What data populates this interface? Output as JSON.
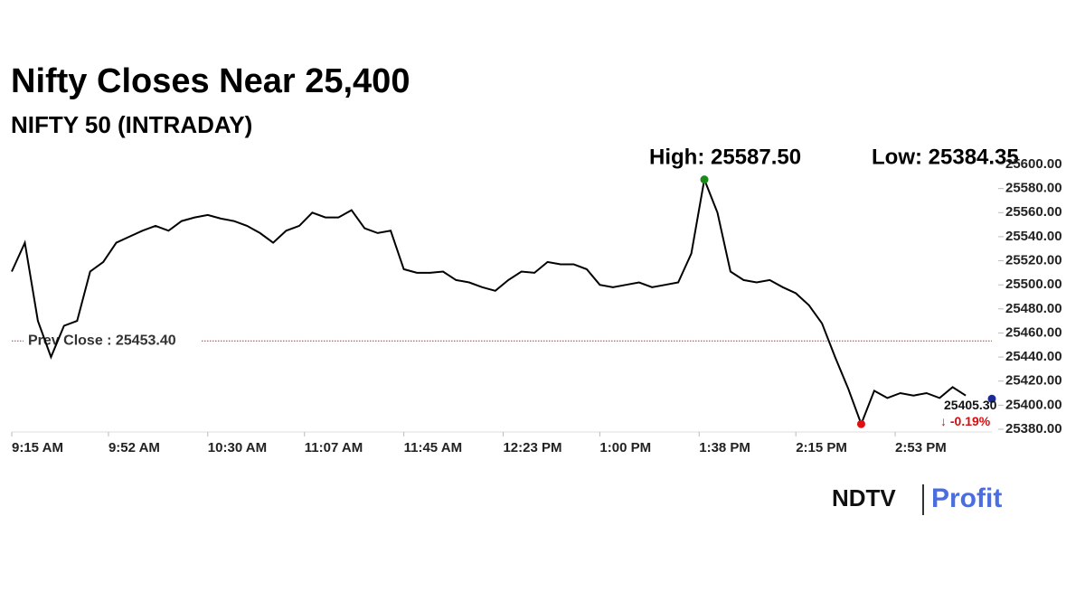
{
  "chart_data": {
    "type": "line",
    "title": "Nifty Closes Near 25,400",
    "subtitle": "NIFTY 50 (INTRADAY)",
    "x": [
      "9:15 AM",
      "9:20 AM",
      "9:25 AM",
      "9:30 AM",
      "9:35 AM",
      "9:40 AM",
      "9:45 AM",
      "9:50 AM",
      "9:55 AM",
      "10:00 AM",
      "10:05 AM",
      "10:10 AM",
      "10:15 AM",
      "10:20 AM",
      "10:25 AM",
      "10:30 AM",
      "10:35 AM",
      "10:40 AM",
      "10:45 AM",
      "10:50 AM",
      "10:55 AM",
      "11:00 AM",
      "11:05 AM",
      "11:10 AM",
      "11:15 AM",
      "11:20 AM",
      "11:25 AM",
      "11:30 AM",
      "11:35 AM",
      "11:40 AM",
      "11:45 AM",
      "11:50 AM",
      "11:55 AM",
      "12:00 PM",
      "12:05 PM",
      "12:10 PM",
      "12:15 PM",
      "12:20 PM",
      "12:25 PM",
      "12:30 PM",
      "12:35 PM",
      "12:40 PM",
      "12:45 PM",
      "12:50 PM",
      "12:55 PM",
      "1:00 PM",
      "1:05 PM",
      "1:10 PM",
      "1:15 PM",
      "1:20 PM",
      "1:25 PM",
      "1:30 PM",
      "1:35 PM",
      "1:40 PM",
      "1:45 PM",
      "1:50 PM",
      "1:55 PM",
      "2:00 PM",
      "2:05 PM",
      "2:10 PM",
      "2:15 PM",
      "2:20 PM",
      "2:25 PM",
      "2:30 PM",
      "2:35 PM",
      "2:40 PM",
      "2:45 PM",
      "2:50 PM",
      "2:55 PM",
      "3:00 PM",
      "3:05 PM",
      "3:10 PM",
      "3:15 PM",
      "3:20 PM"
    ],
    "series": [
      {
        "color": "#000000",
        "values": [
          25511,
          25535,
          25470,
          25440,
          25466,
          25470,
          25511,
          25519,
          25535,
          25540,
          25545,
          25549,
          25545,
          25553,
          25556,
          25558,
          25555,
          25553,
          25549,
          25543,
          25535,
          25545,
          25549,
          25560,
          25556,
          25556,
          25562,
          25547,
          25543,
          25545,
          25513,
          25510,
          25510,
          25511,
          25504,
          25502,
          25498,
          25495,
          25504,
          25511,
          25510,
          25519,
          25517,
          25517,
          25513,
          25500,
          25498,
          25500,
          25502,
          25498,
          25500,
          25502,
          25526,
          25587.5,
          25560,
          25511,
          25504,
          25502,
          25504,
          25498,
          25493,
          25483,
          25468,
          25440,
          25414,
          25384.35,
          25412,
          25406,
          25410,
          25408,
          25410,
          25406,
          25415,
          25408
        ]
      }
    ],
    "xlim": [
      "9:15 AM",
      "3:30 PM"
    ],
    "xticks": [
      "9:15 AM",
      "9:52 AM",
      "10:30 AM",
      "11:07 AM",
      "11:45 AM",
      "12:23 PM",
      "1:00 PM",
      "1:38 PM",
      "2:15 PM",
      "2:53 PM"
    ],
    "ylim": [
      25380,
      25600
    ],
    "yticks": [
      {
        "value": 25380,
        "label": "25380.00"
      },
      {
        "value": 25400,
        "label": "25400.00"
      },
      {
        "value": 25420,
        "label": "25420.00"
      },
      {
        "value": 25440,
        "label": "25440.00"
      },
      {
        "value": 25460,
        "label": "25460.00"
      },
      {
        "value": 25480,
        "label": "25480.00"
      },
      {
        "value": 25500,
        "label": "25500.00"
      },
      {
        "value": 25520,
        "label": "25520.00"
      },
      {
        "value": 25540,
        "label": "25540.00"
      },
      {
        "value": 25560,
        "label": "25560.00"
      },
      {
        "value": 25580,
        "label": "25580.00"
      },
      {
        "value": 25600,
        "label": "25600.00"
      }
    ],
    "high": {
      "value": 25587.5,
      "label": "High: 25587.50",
      "x": "1:40 PM",
      "color": "#1a8a1a"
    },
    "low": {
      "value": 25384.35,
      "label": "Low: 25384.35",
      "x": "2:40 PM",
      "color": "#e01010"
    },
    "prev_close": {
      "value": 25453.4,
      "label": "Prev Close : 25453.40",
      "color": "#c03030"
    },
    "close": {
      "value": 25405.3,
      "label": "25405.30",
      "x": "3:30 PM",
      "color": "#1a2a9a"
    },
    "change": {
      "value": -0.19,
      "label": "↓ -0.19%",
      "color": "#d01010"
    },
    "logo": {
      "left": "NDTV",
      "right": "Profit"
    }
  }
}
